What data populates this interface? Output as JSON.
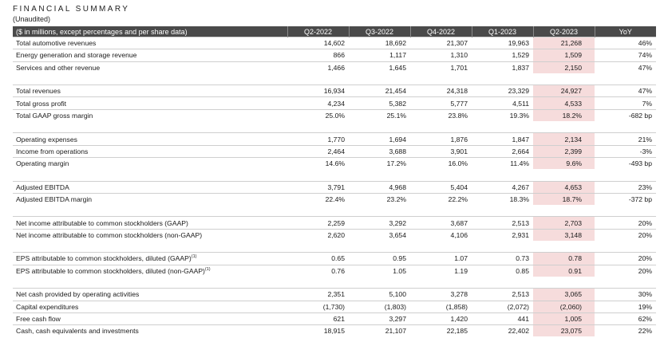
{
  "title": "FINANCIAL SUMMARY",
  "subtitle": "(Unaudited)",
  "header": {
    "label": "($ in millions, except percentages and per share data)",
    "columns": [
      "Q2-2022",
      "Q3-2022",
      "Q4-2022",
      "Q1-2023",
      "Q2-2023",
      "YoY"
    ]
  },
  "colors": {
    "header_bg": "#4a4a4a",
    "highlight": "#f6dcdc"
  },
  "groups": [
    {
      "rows": [
        {
          "label": "Total automotive revenues",
          "values": [
            "14,602",
            "18,692",
            "21,307",
            "19,963",
            "21,268",
            "46%"
          ]
        },
        {
          "label": "Energy generation and storage revenue",
          "values": [
            "866",
            "1,117",
            "1,310",
            "1,529",
            "1,509",
            "74%"
          ]
        },
        {
          "label": "Services and other revenue",
          "values": [
            "1,466",
            "1,645",
            "1,701",
            "1,837",
            "2,150",
            "47%"
          ]
        }
      ]
    },
    {
      "rows": [
        {
          "label": "Total revenues",
          "values": [
            "16,934",
            "21,454",
            "24,318",
            "23,329",
            "24,927",
            "47%"
          ]
        },
        {
          "label": "Total gross profit",
          "values": [
            "4,234",
            "5,382",
            "5,777",
            "4,511",
            "4,533",
            "7%"
          ]
        },
        {
          "label": "Total GAAP gross margin",
          "values": [
            "25.0%",
            "25.1%",
            "23.8%",
            "19.3%",
            "18.2%",
            "-682 bp"
          ]
        }
      ]
    },
    {
      "rows": [
        {
          "label": "Operating expenses",
          "values": [
            "1,770",
            "1,694",
            "1,876",
            "1,847",
            "2,134",
            "21%"
          ]
        },
        {
          "label": "Income from operations",
          "values": [
            "2,464",
            "3,688",
            "3,901",
            "2,664",
            "2,399",
            "-3%"
          ]
        },
        {
          "label": "Operating margin",
          "values": [
            "14.6%",
            "17.2%",
            "16.0%",
            "11.4%",
            "9.6%",
            "-493 bp"
          ]
        }
      ]
    },
    {
      "rows": [
        {
          "label": "Adjusted EBITDA",
          "values": [
            "3,791",
            "4,968",
            "5,404",
            "4,267",
            "4,653",
            "23%"
          ]
        },
        {
          "label": "Adjusted EBITDA margin",
          "values": [
            "22.4%",
            "23.2%",
            "22.2%",
            "18.3%",
            "18.7%",
            "-372 bp"
          ]
        }
      ]
    },
    {
      "rows": [
        {
          "label": "Net income attributable to common stockholders (GAAP)",
          "values": [
            "2,259",
            "3,292",
            "3,687",
            "2,513",
            "2,703",
            "20%"
          ]
        },
        {
          "label": "Net income attributable to common stockholders (non-GAAP)",
          "values": [
            "2,620",
            "3,654",
            "4,106",
            "2,931",
            "3,148",
            "20%"
          ]
        }
      ]
    },
    {
      "rows": [
        {
          "label": "EPS attributable to common stockholders, diluted (GAAP)",
          "sup": "(1)",
          "values": [
            "0.65",
            "0.95",
            "1.07",
            "0.73",
            "0.78",
            "20%"
          ]
        },
        {
          "label": "EPS attributable to common stockholders, diluted (non-GAAP)",
          "sup": "(1)",
          "values": [
            "0.76",
            "1.05",
            "1.19",
            "0.85",
            "0.91",
            "20%"
          ]
        }
      ]
    },
    {
      "rows": [
        {
          "label": "Net cash provided by operating activities",
          "values": [
            "2,351",
            "5,100",
            "3,278",
            "2,513",
            "3,065",
            "30%"
          ]
        },
        {
          "label": "Capital expenditures",
          "values": [
            "(1,730)",
            "(1,803)",
            "(1,858)",
            "(2,072)",
            "(2,060)",
            "19%"
          ]
        },
        {
          "label": "Free cash flow",
          "values": [
            "621",
            "3,297",
            "1,420",
            "441",
            "1,005",
            "62%"
          ]
        },
        {
          "label": "Cash, cash equivalents and investments",
          "values": [
            "18,915",
            "21,107",
            "22,185",
            "22,402",
            "23,075",
            "22%"
          ]
        }
      ]
    }
  ]
}
